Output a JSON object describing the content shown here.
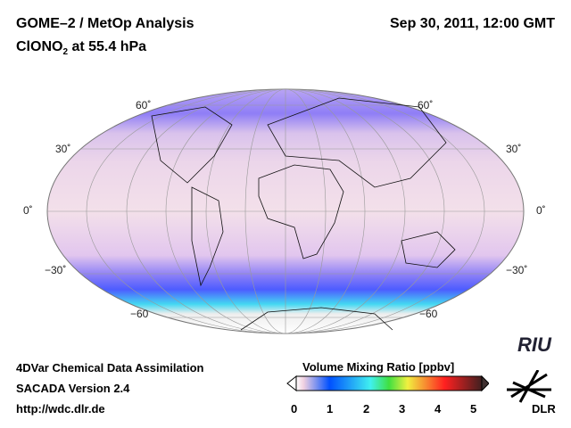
{
  "header": {
    "title": "GOME–2 / MetOp Analysis",
    "species": "ClONO",
    "species_sub": "2",
    "species_rest": " at 55.4 hPa",
    "datetime": "Sep 30, 2011, 12:00 GMT"
  },
  "map": {
    "lat_labels_left": [
      "60˚",
      "30˚",
      "0˚",
      "−30˚",
      "−60"
    ],
    "lat_labels_right": [
      "60˚",
      "30˚",
      "0˚",
      "−30˚",
      "−60"
    ]
  },
  "footer": {
    "line1": "4DVar Chemical Data Assimilation",
    "line2": "SACADA Version 2.4",
    "line3": "http://wdc.dlr.de"
  },
  "colorbar": {
    "title": "Volume Mixing Ratio [ppbv]",
    "ticks": [
      "0",
      "1",
      "2",
      "3",
      "4",
      "5"
    ]
  },
  "logos": {
    "riu": "RIU",
    "dlr": "DLR"
  }
}
